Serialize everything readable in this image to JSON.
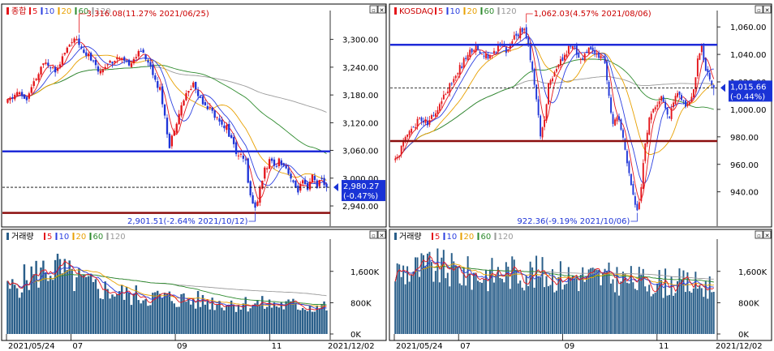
{
  "colors": {
    "up": "#e4161b",
    "down": "#1f35d8",
    "ma5": "#e4161b",
    "ma10": "#2b3fe0",
    "ma20": "#e8a000",
    "ma60": "#2e8b2e",
    "ma120": "#9a9a9a",
    "support": "#8b0d0d",
    "resistance": "#1f2bd8",
    "volume_bar": "#2a5f8a",
    "grid": "#c8c8c8",
    "label_bg": "#1a33d6"
  },
  "legend_items": [
    {
      "label": "5",
      "color": "#e4161b"
    },
    {
      "label": "10",
      "color": "#2b3fe0"
    },
    {
      "label": "20",
      "color": "#e8a000"
    },
    {
      "label": "60",
      "color": "#2e8b2e"
    },
    {
      "label": "120",
      "color": "#9a9a9a"
    }
  ],
  "window_icons": {
    "restore": "▫",
    "close": "✕"
  },
  "chart_data": [
    {
      "type": "candlestick",
      "name": "종합",
      "y_ticks": [
        2940,
        3000,
        3060,
        3120,
        3180,
        3240,
        3300
      ],
      "y_tick_labels": [
        "2,940.00",
        "3,000.00",
        "3,060.00",
        "3,120.00",
        "3,180.00",
        "3,240.00",
        "3,300.00"
      ],
      "ylim": [
        2905,
        3345
      ],
      "high_label": "3,316.08(11.27% 2021/06/25)",
      "low_label": "2,901.51(-2.64% 2021/10/12)",
      "current_label": "2,980.27",
      "current_change": "(-0.47%)",
      "current": 2980.27,
      "resistance": 3058,
      "support": 2925,
      "trend_points": [
        [
          0,
          3165
        ],
        [
          4,
          3185
        ],
        [
          8,
          3170
        ],
        [
          12,
          3215
        ],
        [
          16,
          3255
        ],
        [
          20,
          3235
        ],
        [
          24,
          3270
        ],
        [
          27,
          3300
        ],
        [
          30,
          3290
        ],
        [
          34,
          3265
        ],
        [
          38,
          3230
        ],
        [
          42,
          3250
        ],
        [
          46,
          3260
        ],
        [
          50,
          3245
        ],
        [
          54,
          3265
        ],
        [
          57,
          3275
        ],
        [
          60,
          3240
        ],
        [
          64,
          3190
        ],
        [
          66,
          3140
        ],
        [
          68,
          3065
        ],
        [
          70,
          3110
        ],
        [
          74,
          3170
        ],
        [
          78,
          3205
        ],
        [
          80,
          3180
        ],
        [
          84,
          3155
        ],
        [
          88,
          3130
        ],
        [
          92,
          3110
        ],
        [
          96,
          3055
        ],
        [
          100,
          3035
        ],
        [
          102,
          2960
        ],
        [
          104,
          2935
        ],
        [
          106,
          2975
        ],
        [
          108,
          3020
        ],
        [
          110,
          3035
        ],
        [
          112,
          3025
        ],
        [
          114,
          3040
        ],
        [
          116,
          3030
        ],
        [
          118,
          3015
        ],
        [
          120,
          2985
        ],
        [
          122,
          2975
        ],
        [
          124,
          2990
        ],
        [
          126,
          2970
        ],
        [
          128,
          3005
        ],
        [
          130,
          2985
        ],
        [
          132,
          2995
        ],
        [
          134,
          2980
        ]
      ],
      "n_candles": 135,
      "seed": 11
    },
    {
      "type": "candlestick",
      "name": "KOSDAQ",
      "y_ticks": [
        940,
        960,
        980,
        1000,
        1020,
        1040,
        1060
      ],
      "y_tick_labels": [
        "940.00",
        "960.00",
        "980.00",
        "1,000.00",
        "1,020.00",
        "1,040.00",
        "1,060.00"
      ],
      "ylim": [
        918,
        1066
      ],
      "high_label": "1,062.03(4.57% 2021/08/06)",
      "low_label": "922.36(-9.19% 2021/10/06)",
      "current_label": "1,015.66",
      "current_change": "(-0.44%)",
      "current": 1015.66,
      "resistance": 1047,
      "support": 977,
      "trend_points": [
        [
          0,
          962
        ],
        [
          4,
          975
        ],
        [
          8,
          985
        ],
        [
          12,
          993
        ],
        [
          16,
          990
        ],
        [
          20,
          998
        ],
        [
          24,
          1010
        ],
        [
          28,
          1020
        ],
        [
          32,
          1030
        ],
        [
          36,
          1040
        ],
        [
          40,
          1046
        ],
        [
          44,
          1040
        ],
        [
          48,
          1038
        ],
        [
          52,
          1048
        ],
        [
          56,
          1042
        ],
        [
          60,
          1055
        ],
        [
          64,
          1058
        ],
        [
          66,
          1045
        ],
        [
          68,
          1030
        ],
        [
          70,
          1008
        ],
        [
          72,
          980
        ],
        [
          74,
          990
        ],
        [
          76,
          1020
        ],
        [
          80,
          1030
        ],
        [
          84,
          1040
        ],
        [
          88,
          1048
        ],
        [
          92,
          1035
        ],
        [
          96,
          1045
        ],
        [
          100,
          1040
        ],
        [
          104,
          1035
        ],
        [
          106,
          1010
        ],
        [
          108,
          990
        ],
        [
          110,
          995
        ],
        [
          112,
          985
        ],
        [
          114,
          970
        ],
        [
          116,
          955
        ],
        [
          118,
          940
        ],
        [
          120,
          925
        ],
        [
          122,
          945
        ],
        [
          124,
          975
        ],
        [
          126,
          995
        ],
        [
          128,
          1000
        ],
        [
          130,
          1005
        ],
        [
          132,
          1010
        ],
        [
          134,
          1000
        ],
        [
          136,
          995
        ],
        [
          138,
          1005
        ],
        [
          140,
          1010
        ],
        [
          142,
          1008
        ],
        [
          144,
          1000
        ],
        [
          146,
          1005
        ],
        [
          148,
          1015
        ],
        [
          150,
          1035
        ],
        [
          152,
          1045
        ],
        [
          154,
          1030
        ],
        [
          156,
          1020
        ],
        [
          158,
          1015
        ]
      ],
      "n_candles": 159,
      "seed": 23
    }
  ],
  "volume": [
    {
      "name": "거래량",
      "y_tick_labels": [
        "0K",
        "800K",
        "1,600K"
      ],
      "y_ticks": [
        0,
        800,
        1600
      ],
      "ylim": [
        0,
        2300
      ],
      "x_labels": [
        "2021/05/24",
        "07",
        "09",
        "11"
      ],
      "x_end_label": "2021/12/02",
      "trend_points": [
        [
          0,
          1100
        ],
        [
          10,
          1500
        ],
        [
          20,
          1700
        ],
        [
          28,
          1400
        ],
        [
          36,
          1200
        ],
        [
          50,
          1000
        ],
        [
          70,
          900
        ],
        [
          90,
          800
        ],
        [
          110,
          750
        ],
        [
          134,
          700
        ]
      ],
      "n_bars": 135,
      "seed": 5
    },
    {
      "name": "거래량",
      "y_tick_labels": [
        "0K",
        "800K",
        "1,600K"
      ],
      "y_ticks": [
        0,
        800,
        1600
      ],
      "ylim": [
        0,
        2300
      ],
      "x_labels": [
        "2021/05/24",
        "07",
        "09",
        "11"
      ],
      "x_end_label": "2021/12/02",
      "trend_points": [
        [
          0,
          1600
        ],
        [
          20,
          1700
        ],
        [
          40,
          1500
        ],
        [
          60,
          1600
        ],
        [
          80,
          1500
        ],
        [
          100,
          1450
        ],
        [
          120,
          1350
        ],
        [
          140,
          1300
        ],
        [
          158,
          1200
        ]
      ],
      "n_bars": 159,
      "seed": 9
    }
  ]
}
